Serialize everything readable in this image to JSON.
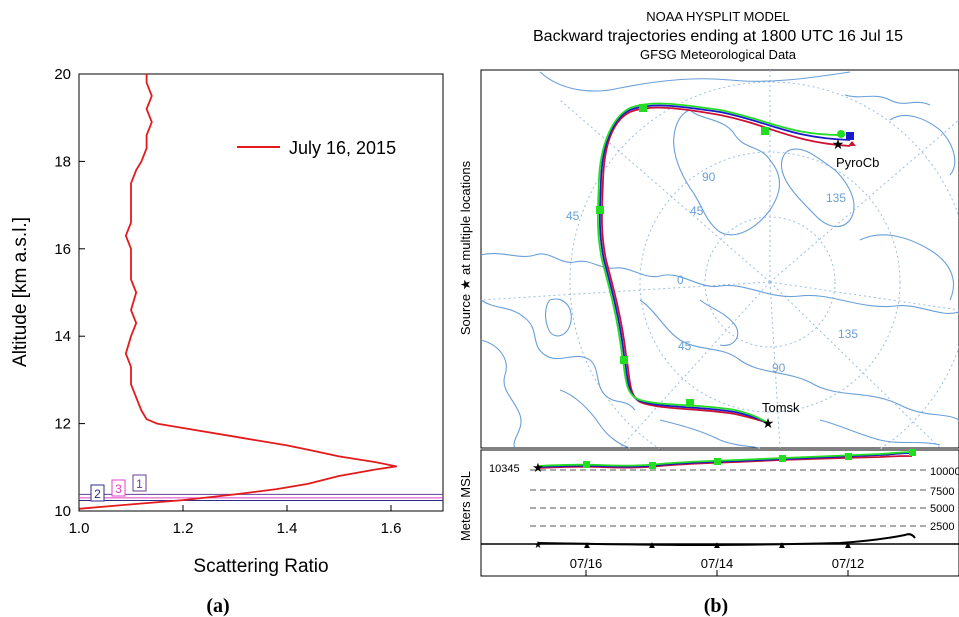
{
  "panel_a": {
    "caption": "(a)",
    "legend_label": "July 16, 2015",
    "layer_labels": [
      "2",
      "3",
      "1"
    ],
    "colors": {
      "profile": "#e31a1c",
      "layer1": "#6a3d9a",
      "layer2": "#2b2b8c",
      "layer3": "#e040c8"
    }
  },
  "panel_b": {
    "caption": "(b)",
    "title_lines": [
      "NOAA HYSPLIT MODEL",
      "Backward trajectories ending at 1800 UTC 16 Jul 15",
      "GFSG Meteorological Data"
    ],
    "source_label": "Source ★ at multiple locations",
    "locations": [
      "PyroCb",
      "Tomsk"
    ],
    "map_labels": [
      "90",
      "45",
      "135",
      "45",
      "0",
      "45",
      "135",
      "90"
    ],
    "height_axis_label": "Meters MSL",
    "start_height": "10345",
    "height_ticks": [
      "10000",
      "7500",
      "5000",
      "2500"
    ],
    "date_ticks": [
      "07/16",
      "07/14",
      "07/12"
    ],
    "colors": {
      "land": "#6a9fd8",
      "traj_green": "#22dd22",
      "traj_blue": "#1a1acc",
      "traj_red": "#cc1133"
    }
  },
  "chart_data": [
    {
      "type": "line",
      "title": "",
      "xlabel": "Scattering Ratio",
      "ylabel": "Altitude [km a.s.l.]",
      "xlim": [
        1.0,
        1.7
      ],
      "ylim": [
        10,
        20
      ],
      "x_ticks": [
        "1.0",
        "1.2",
        "1.4",
        "1.6"
      ],
      "y_ticks": [
        "10",
        "12",
        "14",
        "16",
        "18",
        "20"
      ],
      "grid": false,
      "legend_position": "top-right",
      "series": [
        {
          "name": "July 16, 2015",
          "points": [
            [
              1.0,
              10.05
            ],
            [
              1.1,
              10.15
            ],
            [
              1.2,
              10.25
            ],
            [
              1.3,
              10.38
            ],
            [
              1.38,
              10.5
            ],
            [
              1.44,
              10.62
            ],
            [
              1.5,
              10.8
            ],
            [
              1.57,
              10.95
            ],
            [
              1.61,
              11.02
            ],
            [
              1.57,
              11.12
            ],
            [
              1.5,
              11.25
            ],
            [
              1.45,
              11.38
            ],
            [
              1.4,
              11.5
            ],
            [
              1.3,
              11.7
            ],
            [
              1.2,
              11.9
            ],
            [
              1.15,
              12.0
            ],
            [
              1.13,
              12.1
            ],
            [
              1.12,
              12.3
            ],
            [
              1.11,
              12.6
            ],
            [
              1.1,
              12.9
            ],
            [
              1.1,
              13.3
            ],
            [
              1.09,
              13.6
            ],
            [
              1.1,
              14.0
            ],
            [
              1.11,
              14.3
            ],
            [
              1.1,
              14.6
            ],
            [
              1.11,
              15.0
            ],
            [
              1.1,
              15.3
            ],
            [
              1.1,
              15.7
            ],
            [
              1.1,
              16.0
            ],
            [
              1.09,
              16.3
            ],
            [
              1.1,
              16.6
            ],
            [
              1.1,
              16.9
            ],
            [
              1.1,
              17.2
            ],
            [
              1.1,
              17.5
            ],
            [
              1.11,
              17.8
            ],
            [
              1.12,
              18.0
            ],
            [
              1.13,
              18.3
            ],
            [
              1.13,
              18.6
            ],
            [
              1.14,
              18.9
            ],
            [
              1.13,
              19.2
            ],
            [
              1.14,
              19.5
            ],
            [
              1.13,
              19.8
            ],
            [
              1.13,
              20.0
            ]
          ]
        }
      ],
      "layers": [
        {
          "label": "1",
          "altitude_km": 10.38
        },
        {
          "label": "2",
          "altitude_km": 10.24
        },
        {
          "label": "3",
          "altitude_km": 10.3
        }
      ]
    },
    {
      "type": "line",
      "title": "Backward trajectories ending at 1800 UTC 16 Jul 15",
      "ylabel": "Meters MSL",
      "x_ticks": [
        "07/16",
        "07/14",
        "07/12"
      ],
      "y_ticks": [
        "10000",
        "7500",
        "5000",
        "2500"
      ],
      "series": [
        {
          "name": "",
          "color": "green",
          "heights_m": [
            10345,
            10450,
            10420,
            10500,
            10600,
            10650,
            10700,
            10800
          ]
        },
        {
          "name": "",
          "color": "blue",
          "heights_m": [
            10345,
            10420,
            10400,
            10480,
            10560,
            10600,
            10620,
            10700
          ]
        },
        {
          "name": "",
          "color": "red",
          "heights_m": [
            10345,
            10400,
            10390,
            10460,
            10540,
            10580,
            10600,
            10650
          ]
        }
      ]
    }
  ]
}
